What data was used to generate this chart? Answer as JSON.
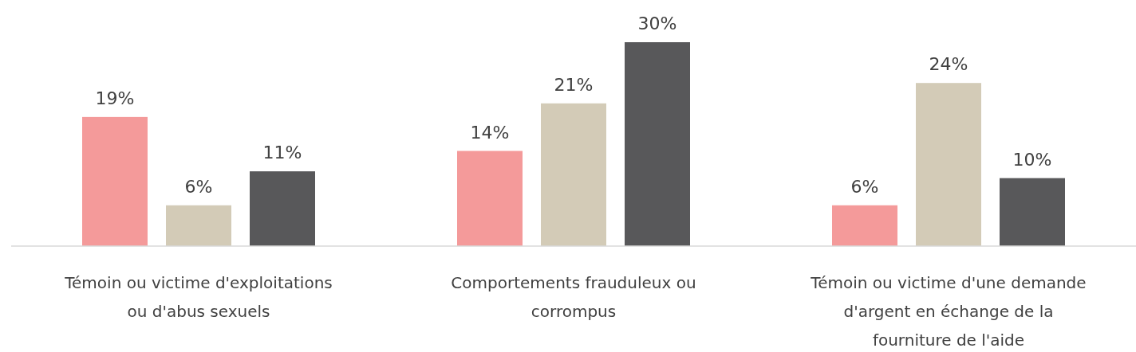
{
  "chart_data": {
    "type": "bar",
    "categories": [
      "Témoin ou victime d'exploitations ou d'abus sexuels",
      "Comportements frauduleux ou corrompus",
      "Témoin ou victime d'une demande d'argent en échange de la fourniture de l'aide"
    ],
    "series": [
      {
        "color": "#f49a9a",
        "values": [
          19,
          14,
          6
        ],
        "value_labels": [
          "19%",
          "14%",
          "6%"
        ]
      },
      {
        "color": "#d3cbb7",
        "values": [
          6,
          21,
          24
        ],
        "value_labels": [
          "6%",
          "21%",
          "24%"
        ]
      },
      {
        "color": "#58585a",
        "values": [
          11,
          30,
          10
        ],
        "value_labels": [
          "11%",
          "30%",
          "10%"
        ]
      }
    ],
    "grid": false
  }
}
